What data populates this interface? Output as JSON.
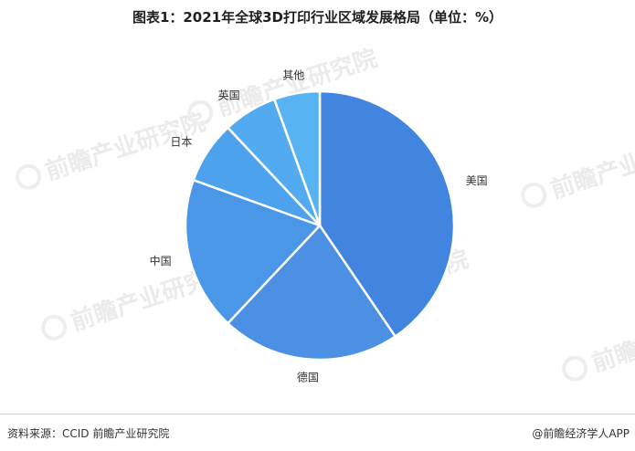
{
  "title": "图表1：2021年全球3D打印行业区域发展格局（单位：%）",
  "source": "资料来源：CCID 前瞻产业研究院",
  "credit": "@前瞻经济学人APP",
  "watermark": {
    "brand": "前瞻产业研究院"
  },
  "chart_data": {
    "type": "pie",
    "title": "图表1：2021年全球3D打印行业区域发展格局（单位：%）",
    "slices": [
      {
        "label": "美国",
        "value": 40.5
      },
      {
        "label": "德国",
        "value": 21.5
      },
      {
        "label": "中国",
        "value": 18.5
      },
      {
        "label": "日本",
        "value": 7.5
      },
      {
        "label": "英国",
        "value": 6.5
      },
      {
        "label": "其他",
        "value": 5.5
      }
    ],
    "colors": [
      "#4285e0",
      "#4b90e3",
      "#4a97e8",
      "#4da2ee",
      "#52abf0",
      "#58b3f3"
    ],
    "start": "12 o'clock",
    "direction": "clockwise",
    "legend": "none"
  }
}
